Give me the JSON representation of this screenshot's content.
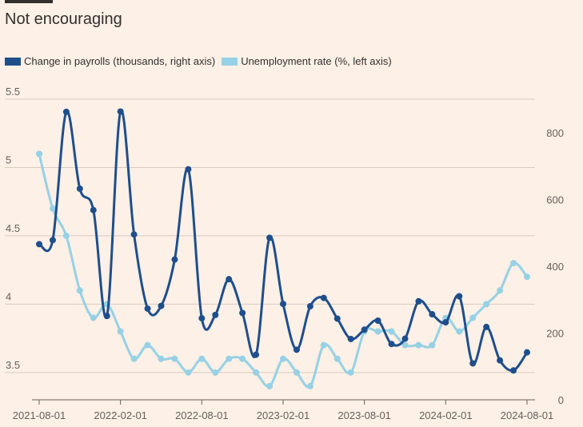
{
  "header": {
    "title": "Not encouraging"
  },
  "legend": [
    {
      "label": "Change in payrolls (thousands, right axis)",
      "color": "#1f4e8c"
    },
    {
      "label": "Unemployment rate (%, left axis)",
      "color": "#96d1e5"
    }
  ],
  "chart_data": {
    "type": "line",
    "title": "Not encouraging",
    "x": [
      "2021-08",
      "2021-09",
      "2021-10",
      "2021-11",
      "2021-12",
      "2022-01",
      "2022-02",
      "2022-03",
      "2022-04",
      "2022-05",
      "2022-06",
      "2022-07",
      "2022-08",
      "2022-09",
      "2022-10",
      "2022-11",
      "2022-12",
      "2023-01",
      "2023-02",
      "2023-03",
      "2023-04",
      "2023-05",
      "2023-06",
      "2023-07",
      "2023-08",
      "2023-09",
      "2023-10",
      "2023-11",
      "2023-12",
      "2024-01",
      "2024-02",
      "2024-03",
      "2024-04",
      "2024-05",
      "2024-06",
      "2024-07",
      "2024-08"
    ],
    "xticks": [
      "2021-08-01",
      "2022-02-01",
      "2022-08-01",
      "2023-02-01",
      "2023-08-01",
      "2024-02-01",
      "2024-08-01"
    ],
    "y_left": {
      "ticks": [
        "5.5",
        "5",
        "4.5",
        "4",
        "3.5"
      ],
      "tick_values": [
        5.5,
        5,
        4.5,
        4,
        3.5
      ],
      "range": [
        3.3,
        5.5
      ]
    },
    "y_right": {
      "ticks": [
        "800",
        "600",
        "400",
        "200",
        "0"
      ],
      "tick_values": [
        800,
        600,
        400,
        200,
        0
      ],
      "range": [
        0,
        900
      ]
    },
    "series": [
      {
        "name": "Change in payrolls (thousands, right axis)",
        "axis": "right",
        "color": "#1f4e8c",
        "values": [
          466,
          478,
          862,
          632,
          568,
          251,
          863,
          495,
          273,
          281,
          420,
          690,
          244,
          254,
          361,
          260,
          135,
          485,
          287,
          150,
          280,
          305,
          243,
          182,
          210,
          237,
          167,
          183,
          295,
          256,
          232,
          310,
          109,
          218,
          118,
          88,
          142
        ]
      },
      {
        "name": "Unemployment rate (%, left axis)",
        "axis": "left",
        "color": "#96d1e5",
        "values": [
          5.1,
          4.7,
          4.5,
          4.1,
          3.9,
          4.0,
          3.8,
          3.6,
          3.7,
          3.6,
          3.6,
          3.5,
          3.6,
          3.5,
          3.6,
          3.6,
          3.5,
          3.4,
          3.6,
          3.5,
          3.4,
          3.7,
          3.6,
          3.5,
          3.8,
          3.8,
          3.8,
          3.7,
          3.7,
          3.7,
          3.9,
          3.8,
          3.9,
          4.0,
          4.1,
          4.3,
          4.2
        ]
      }
    ],
    "grid": true
  }
}
